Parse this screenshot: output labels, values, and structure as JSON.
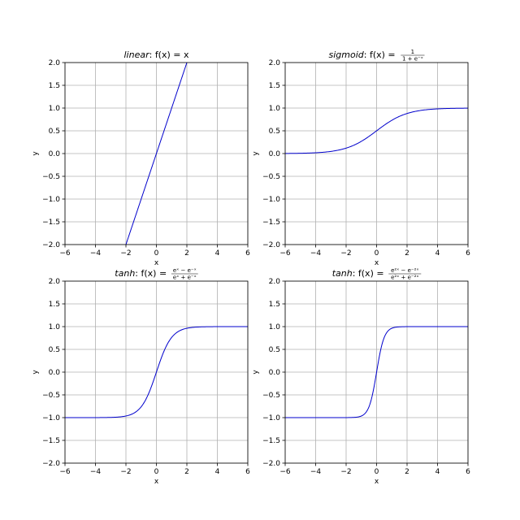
{
  "chart_data": [
    {
      "type": "line",
      "title_name": "linear",
      "title_eq": "f(x) = x",
      "function": "linear",
      "xlabel": "x",
      "ylabel": "y",
      "xlim": [
        -6,
        6
      ],
      "ylim": [
        -2,
        2
      ],
      "xticks": [
        -6,
        -4,
        -2,
        0,
        2,
        4,
        6
      ],
      "yticks": [
        -2.0,
        -1.5,
        -1.0,
        -0.5,
        0.0,
        0.5,
        1.0,
        1.5,
        2.0
      ],
      "xtick_labels": [
        "−6",
        "−4",
        "−2",
        "0",
        "2",
        "4",
        "6"
      ],
      "ytick_labels": [
        "−2.0",
        "−1.5",
        "−1.0",
        "−0.5",
        "0.0",
        "0.5",
        "1.0",
        "1.5",
        "2.0"
      ],
      "grid": true,
      "color": "#0000cc",
      "x": [
        -2,
        2
      ],
      "y": [
        -2,
        2
      ]
    },
    {
      "type": "line",
      "title_name": "sigmoid",
      "title_eq": "f(x) =",
      "title_num": "1",
      "title_den": "1 + e⁻ˣ",
      "function": "sigmoid",
      "xlabel": "x",
      "ylabel": "y",
      "xlim": [
        -6,
        6
      ],
      "ylim": [
        -2,
        2
      ],
      "xticks": [
        -6,
        -4,
        -2,
        0,
        2,
        4,
        6
      ],
      "yticks": [
        -2.0,
        -1.5,
        -1.0,
        -0.5,
        0.0,
        0.5,
        1.0,
        1.5,
        2.0
      ],
      "xtick_labels": [
        "−6",
        "−4",
        "−2",
        "0",
        "2",
        "4",
        "6"
      ],
      "ytick_labels": [
        "−2.0",
        "−1.5",
        "−1.0",
        "−0.5",
        "0.0",
        "0.5",
        "1.0",
        "1.5",
        "2.0"
      ],
      "grid": true,
      "color": "#0000cc",
      "x": [
        -6,
        -5,
        -4,
        -3,
        -2,
        -1,
        0,
        1,
        2,
        3,
        4,
        5,
        6
      ],
      "y": [
        0.0025,
        0.0067,
        0.018,
        0.047,
        0.119,
        0.269,
        0.5,
        0.731,
        0.881,
        0.953,
        0.982,
        0.993,
        0.9975
      ]
    },
    {
      "type": "line",
      "title_name": "tanh",
      "title_eq": "f(x) =",
      "title_num": "eˣ − e⁻ˣ",
      "title_den": "eˣ + e⁻ˣ",
      "function": "tanh",
      "xlabel": "x",
      "ylabel": "y",
      "xlim": [
        -6,
        6
      ],
      "ylim": [
        -2,
        2
      ],
      "xticks": [
        -6,
        -4,
        -2,
        0,
        2,
        4,
        6
      ],
      "yticks": [
        -2.0,
        -1.5,
        -1.0,
        -0.5,
        0.0,
        0.5,
        1.0,
        1.5,
        2.0
      ],
      "xtick_labels": [
        "−6",
        "−4",
        "−2",
        "0",
        "2",
        "4",
        "6"
      ],
      "ytick_labels": [
        "−2.0",
        "−1.5",
        "−1.0",
        "−0.5",
        "0.0",
        "0.5",
        "1.0",
        "1.5",
        "2.0"
      ],
      "grid": true,
      "color": "#0000cc",
      "x": [
        -6,
        -4,
        -3,
        -2,
        -1.5,
        -1,
        -0.5,
        0,
        0.5,
        1,
        1.5,
        2,
        3,
        4,
        6
      ],
      "y": [
        -1.0,
        -0.999,
        -0.995,
        -0.964,
        -0.905,
        -0.762,
        -0.462,
        0.0,
        0.462,
        0.762,
        0.905,
        0.964,
        0.995,
        0.999,
        1.0
      ]
    },
    {
      "type": "line",
      "title_name": "tanh",
      "title_eq": "f(x) =",
      "title_num": "e²ˣ − e⁻²ˣ",
      "title_den": "e²ˣ + e⁻²ˣ",
      "function": "tanh2x",
      "xlabel": "x",
      "ylabel": "y",
      "xlim": [
        -6,
        6
      ],
      "ylim": [
        -2,
        2
      ],
      "xticks": [
        -6,
        -4,
        -2,
        0,
        2,
        4,
        6
      ],
      "yticks": [
        -2.0,
        -1.5,
        -1.0,
        -0.5,
        0.0,
        0.5,
        1.0,
        1.5,
        2.0
      ],
      "xtick_labels": [
        "−6",
        "−4",
        "−2",
        "0",
        "2",
        "4",
        "6"
      ],
      "ytick_labels": [
        "−2.0",
        "−1.5",
        "−1.0",
        "−0.5",
        "0.0",
        "0.5",
        "1.0",
        "1.5",
        "2.0"
      ],
      "grid": true,
      "color": "#0000cc",
      "x": [
        -6,
        -2,
        -1.5,
        -1,
        -0.75,
        -0.5,
        -0.25,
        0,
        0.25,
        0.5,
        0.75,
        1,
        1.5,
        2,
        6
      ],
      "y": [
        -1.0,
        -0.999,
        -0.995,
        -0.964,
        -0.905,
        -0.762,
        -0.462,
        0.0,
        0.462,
        0.762,
        0.905,
        0.964,
        0.995,
        0.999,
        1.0
      ]
    }
  ]
}
